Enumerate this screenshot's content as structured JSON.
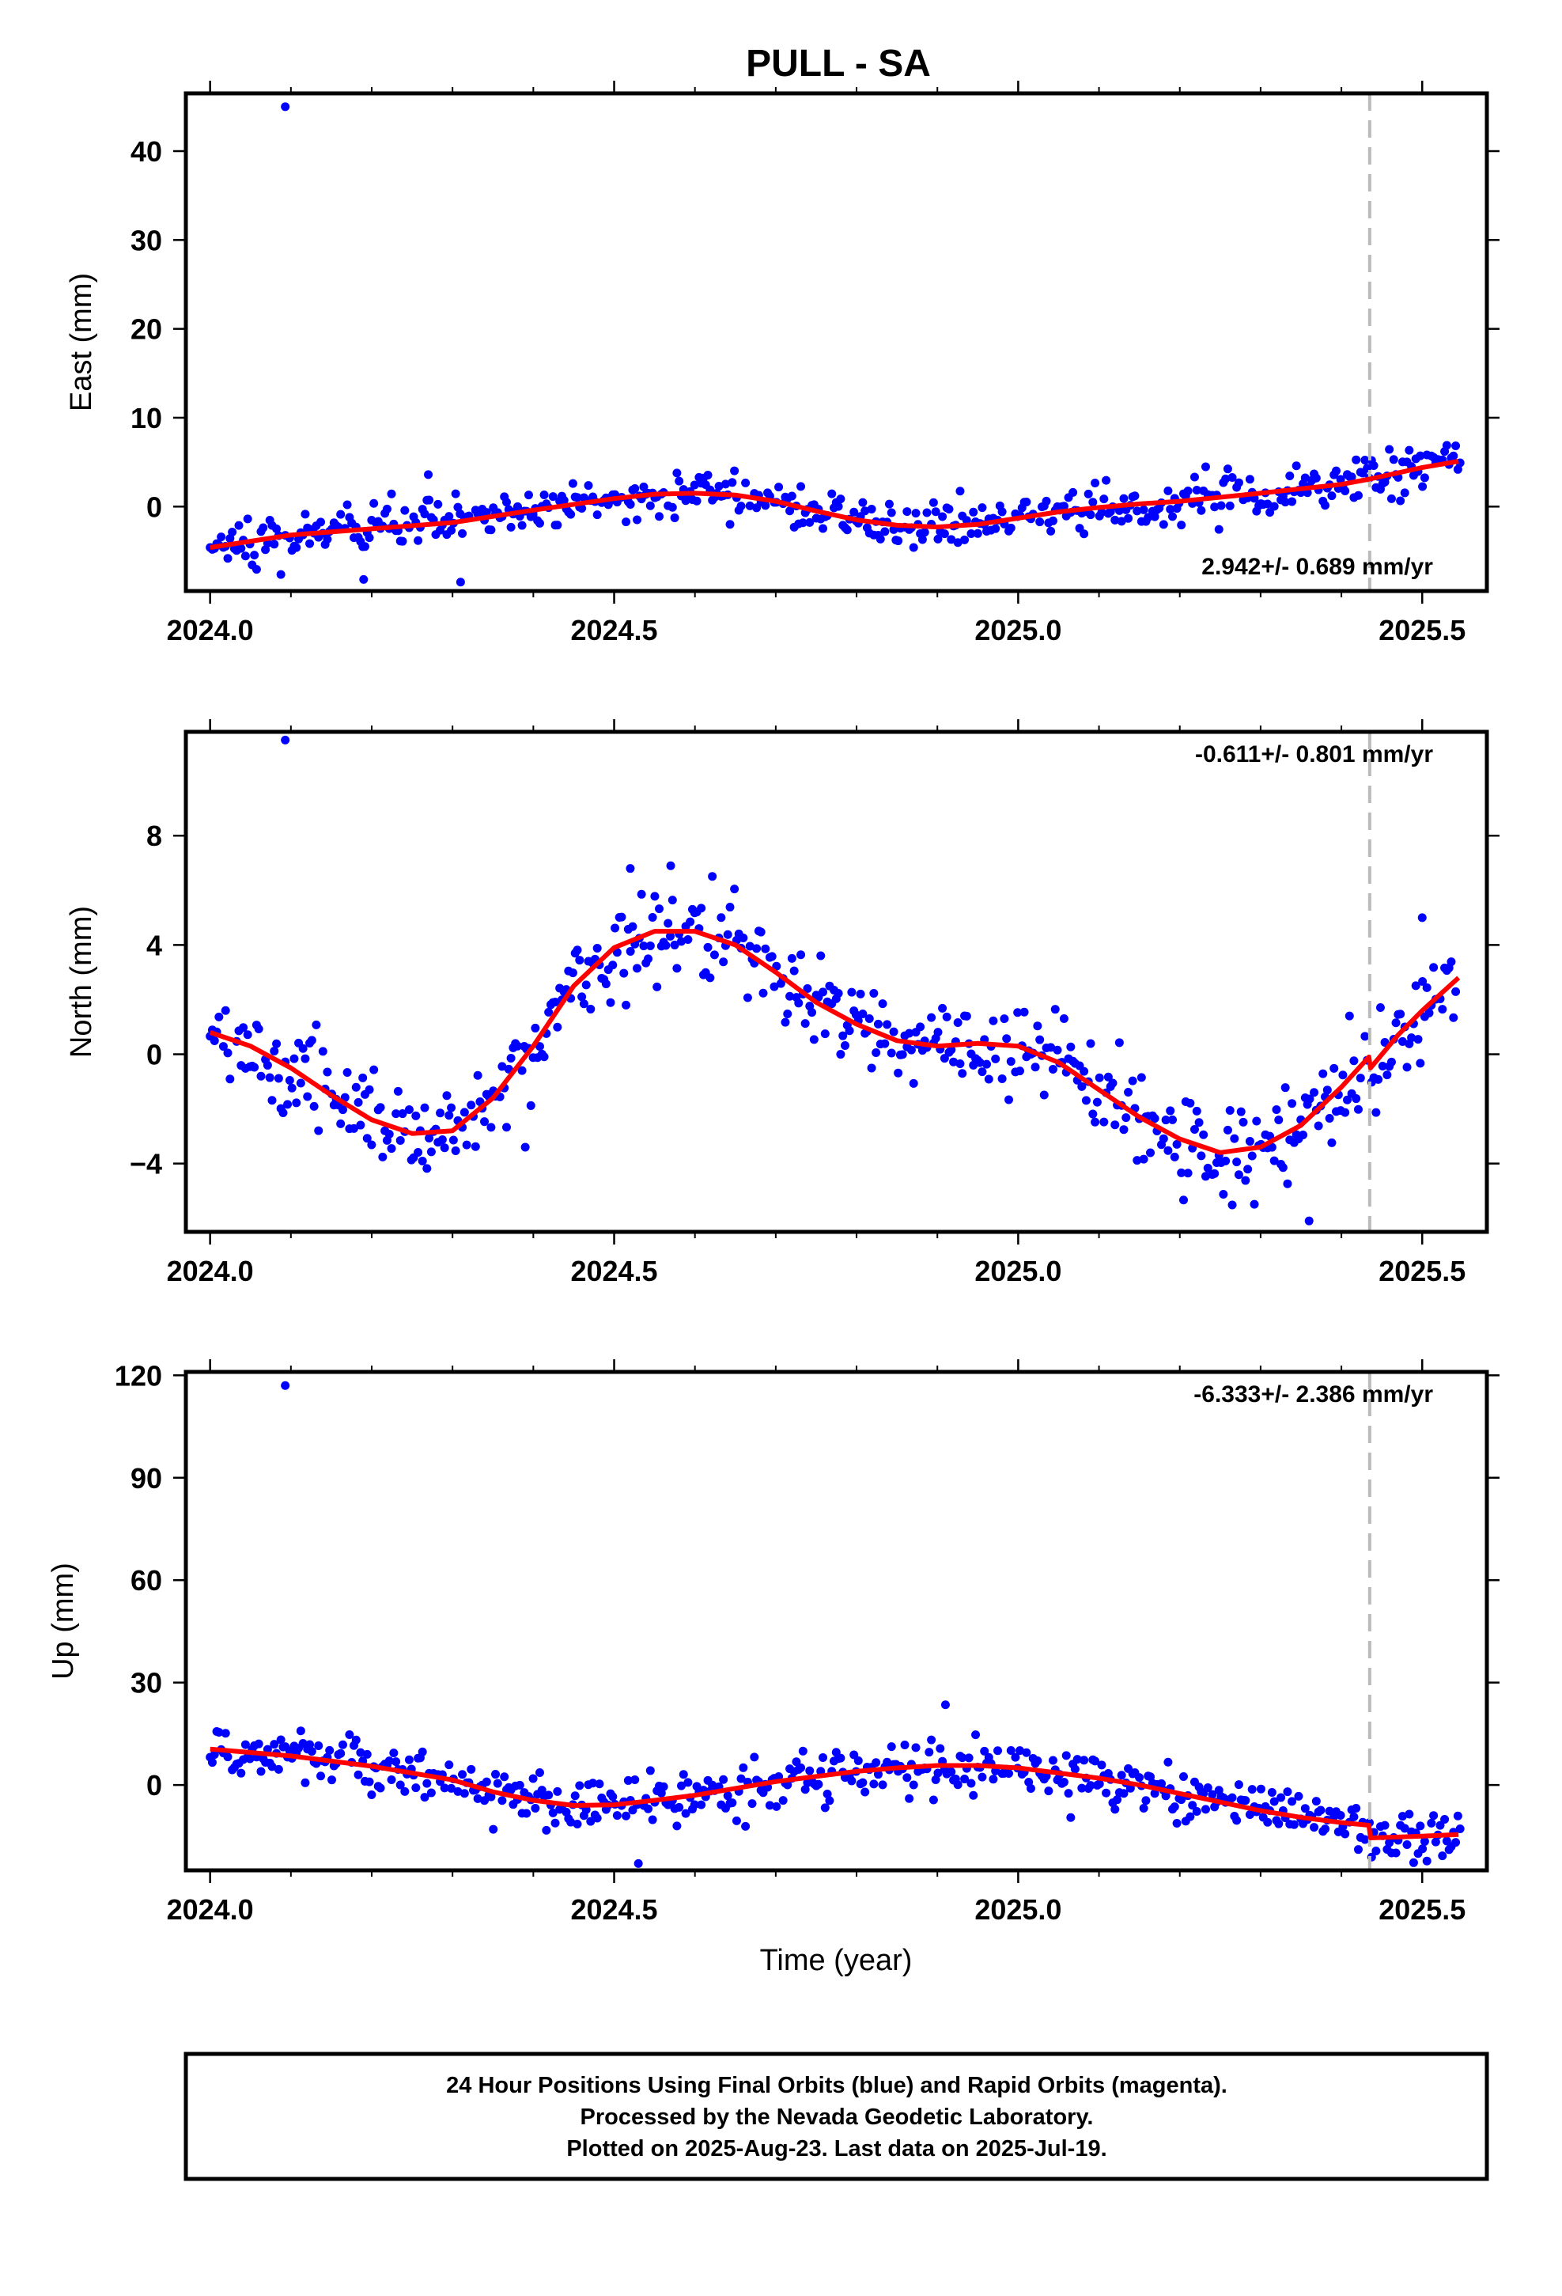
{
  "title": "PULL - SA",
  "xlabel": "Time (year)",
  "footer": {
    "line1": "24 Hour Positions Using Final Orbits (blue) and Rapid Orbits (magenta).",
    "line2": "Processed by the Nevada Geodetic Laboratory.",
    "line3": "Plotted on 2025-Aug-23. Last data on 2025-Jul-19."
  },
  "colors": {
    "final_orbits": "#0000ff",
    "rapid_orbits": "#ff00ff",
    "model": "#ff0000",
    "event_line": "#bbbbbb"
  },
  "chart_data": [
    {
      "type": "scatter",
      "component": "east",
      "ylabel": "East (mm)",
      "rate_label": "2.942+/- 0.689 mm/yr",
      "xlim": [
        2023.97,
        2025.58
      ],
      "ylim": [
        -9.5,
        46.5
      ],
      "xticks": [
        2024.0,
        2024.5,
        2025.0,
        2025.5
      ],
      "xtick_labels": [
        "2024.0",
        "2024.5",
        "2025.0",
        "2025.5"
      ],
      "yticks": [
        0,
        10,
        20,
        30,
        40
      ],
      "ytick_labels": [
        "0",
        "10",
        "20",
        "30",
        "40"
      ],
      "event_line_x": 2025.435,
      "outliers": [
        [
          2024.093,
          45.0
        ],
        [
          2024.19,
          -8.2
        ],
        [
          2024.31,
          -8.5
        ],
        [
          2024.27,
          3.6
        ]
      ],
      "model_knots": [
        [
          2024.0,
          -4.6
        ],
        [
          2024.05,
          -3.9
        ],
        [
          2024.1,
          -3.2
        ],
        [
          2024.2,
          -2.5
        ],
        [
          2024.3,
          -1.8
        ],
        [
          2024.4,
          -0.4
        ],
        [
          2024.5,
          0.9
        ],
        [
          2024.55,
          1.4
        ],
        [
          2024.6,
          1.5
        ],
        [
          2024.65,
          1.3
        ],
        [
          2024.7,
          0.6
        ],
        [
          2024.75,
          -0.5
        ],
        [
          2024.8,
          -1.5
        ],
        [
          2024.85,
          -2.1
        ],
        [
          2024.9,
          -2.3
        ],
        [
          2024.95,
          -2.0
        ],
        [
          2025.0,
          -1.3
        ],
        [
          2025.05,
          -0.6
        ],
        [
          2025.1,
          -0.1
        ],
        [
          2025.15,
          0.3
        ],
        [
          2025.2,
          0.6
        ],
        [
          2025.3,
          1.5
        ],
        [
          2025.4,
          2.5
        ],
        [
          2025.435,
          3.1
        ],
        [
          2025.5,
          4.4
        ],
        [
          2025.545,
          5.1
        ]
      ],
      "noise_mm": 1.3
    },
    {
      "type": "scatter",
      "component": "north",
      "ylabel": "North (mm)",
      "rate_label": "-0.611+/- 0.801 mm/yr",
      "xlim": [
        2023.97,
        2025.58
      ],
      "ylim": [
        -6.5,
        11.8
      ],
      "xticks": [
        2024.0,
        2024.5,
        2025.0,
        2025.5
      ],
      "xtick_labels": [
        "2024.0",
        "2024.5",
        "2025.0",
        "2025.5"
      ],
      "yticks": [
        -4,
        0,
        4,
        8
      ],
      "ytick_labels": [
        "−4",
        "0",
        "4",
        "8"
      ],
      "event_line_x": 2025.435,
      "outliers": [
        [
          2024.093,
          11.5
        ],
        [
          2024.39,
          -3.4
        ],
        [
          2025.36,
          -6.1
        ],
        [
          2025.5,
          5.0
        ],
        [
          2024.52,
          6.8
        ],
        [
          2024.57,
          6.9
        ]
      ],
      "model_knots": [
        [
          2024.0,
          0.8
        ],
        [
          2024.05,
          0.3
        ],
        [
          2024.1,
          -0.5
        ],
        [
          2024.15,
          -1.5
        ],
        [
          2024.2,
          -2.4
        ],
        [
          2024.25,
          -2.9
        ],
        [
          2024.3,
          -2.8
        ],
        [
          2024.35,
          -1.6
        ],
        [
          2024.4,
          0.3
        ],
        [
          2024.45,
          2.5
        ],
        [
          2024.5,
          3.9
        ],
        [
          2024.55,
          4.5
        ],
        [
          2024.6,
          4.5
        ],
        [
          2024.65,
          4.0
        ],
        [
          2024.7,
          3.0
        ],
        [
          2024.75,
          1.9
        ],
        [
          2024.8,
          1.1
        ],
        [
          2024.85,
          0.5
        ],
        [
          2024.9,
          0.3
        ],
        [
          2024.95,
          0.4
        ],
        [
          2025.0,
          0.3
        ],
        [
          2025.05,
          -0.3
        ],
        [
          2025.1,
          -1.3
        ],
        [
          2025.15,
          -2.3
        ],
        [
          2025.2,
          -3.1
        ],
        [
          2025.25,
          -3.6
        ],
        [
          2025.3,
          -3.4
        ],
        [
          2025.35,
          -2.6
        ],
        [
          2025.4,
          -1.2
        ],
        [
          2025.434,
          -0.1
        ],
        [
          2025.436,
          -0.5
        ],
        [
          2025.47,
          0.7
        ],
        [
          2025.5,
          1.6
        ],
        [
          2025.545,
          2.8
        ]
      ],
      "noise_mm": 0.9
    },
    {
      "type": "scatter",
      "component": "up",
      "ylabel": "Up (mm)",
      "rate_label": "-6.333+/- 2.386 mm/yr",
      "xlim": [
        2023.97,
        2025.58
      ],
      "ylim": [
        -25,
        121
      ],
      "xticks": [
        2024.0,
        2024.5,
        2025.0,
        2025.5
      ],
      "xtick_labels": [
        "2024.0",
        "2024.5",
        "2025.0",
        "2025.5"
      ],
      "yticks": [
        0,
        30,
        60,
        90,
        120
      ],
      "ytick_labels": [
        "0",
        "30",
        "60",
        "90",
        "120"
      ],
      "event_line_x": 2025.435,
      "outliers": [
        [
          2024.093,
          117.0
        ],
        [
          2024.53,
          -23.0
        ],
        [
          2024.91,
          23.5
        ]
      ],
      "model_knots": [
        [
          2024.0,
          10.5
        ],
        [
          2024.1,
          8.5
        ],
        [
          2024.2,
          5.5
        ],
        [
          2024.3,
          1.5
        ],
        [
          2024.35,
          -2.0
        ],
        [
          2024.4,
          -4.5
        ],
        [
          2024.45,
          -6.0
        ],
        [
          2024.5,
          -5.8
        ],
        [
          2024.55,
          -4.5
        ],
        [
          2024.6,
          -3.0
        ],
        [
          2024.65,
          -1.0
        ],
        [
          2024.7,
          1.0
        ],
        [
          2024.75,
          2.5
        ],
        [
          2024.8,
          4.0
        ],
        [
          2024.85,
          5.0
        ],
        [
          2024.9,
          5.7
        ],
        [
          2024.95,
          5.7
        ],
        [
          2025.0,
          5.0
        ],
        [
          2025.05,
          3.5
        ],
        [
          2025.1,
          2.0
        ],
        [
          2025.15,
          0.0
        ],
        [
          2025.2,
          -2.5
        ],
        [
          2025.25,
          -5.0
        ],
        [
          2025.3,
          -7.5
        ],
        [
          2025.35,
          -9.5
        ],
        [
          2025.4,
          -11.0
        ],
        [
          2025.434,
          -11.8
        ],
        [
          2025.436,
          -15.5
        ],
        [
          2025.5,
          -15.0
        ],
        [
          2025.545,
          -14.5
        ]
      ],
      "noise_mm": 3.8
    }
  ]
}
